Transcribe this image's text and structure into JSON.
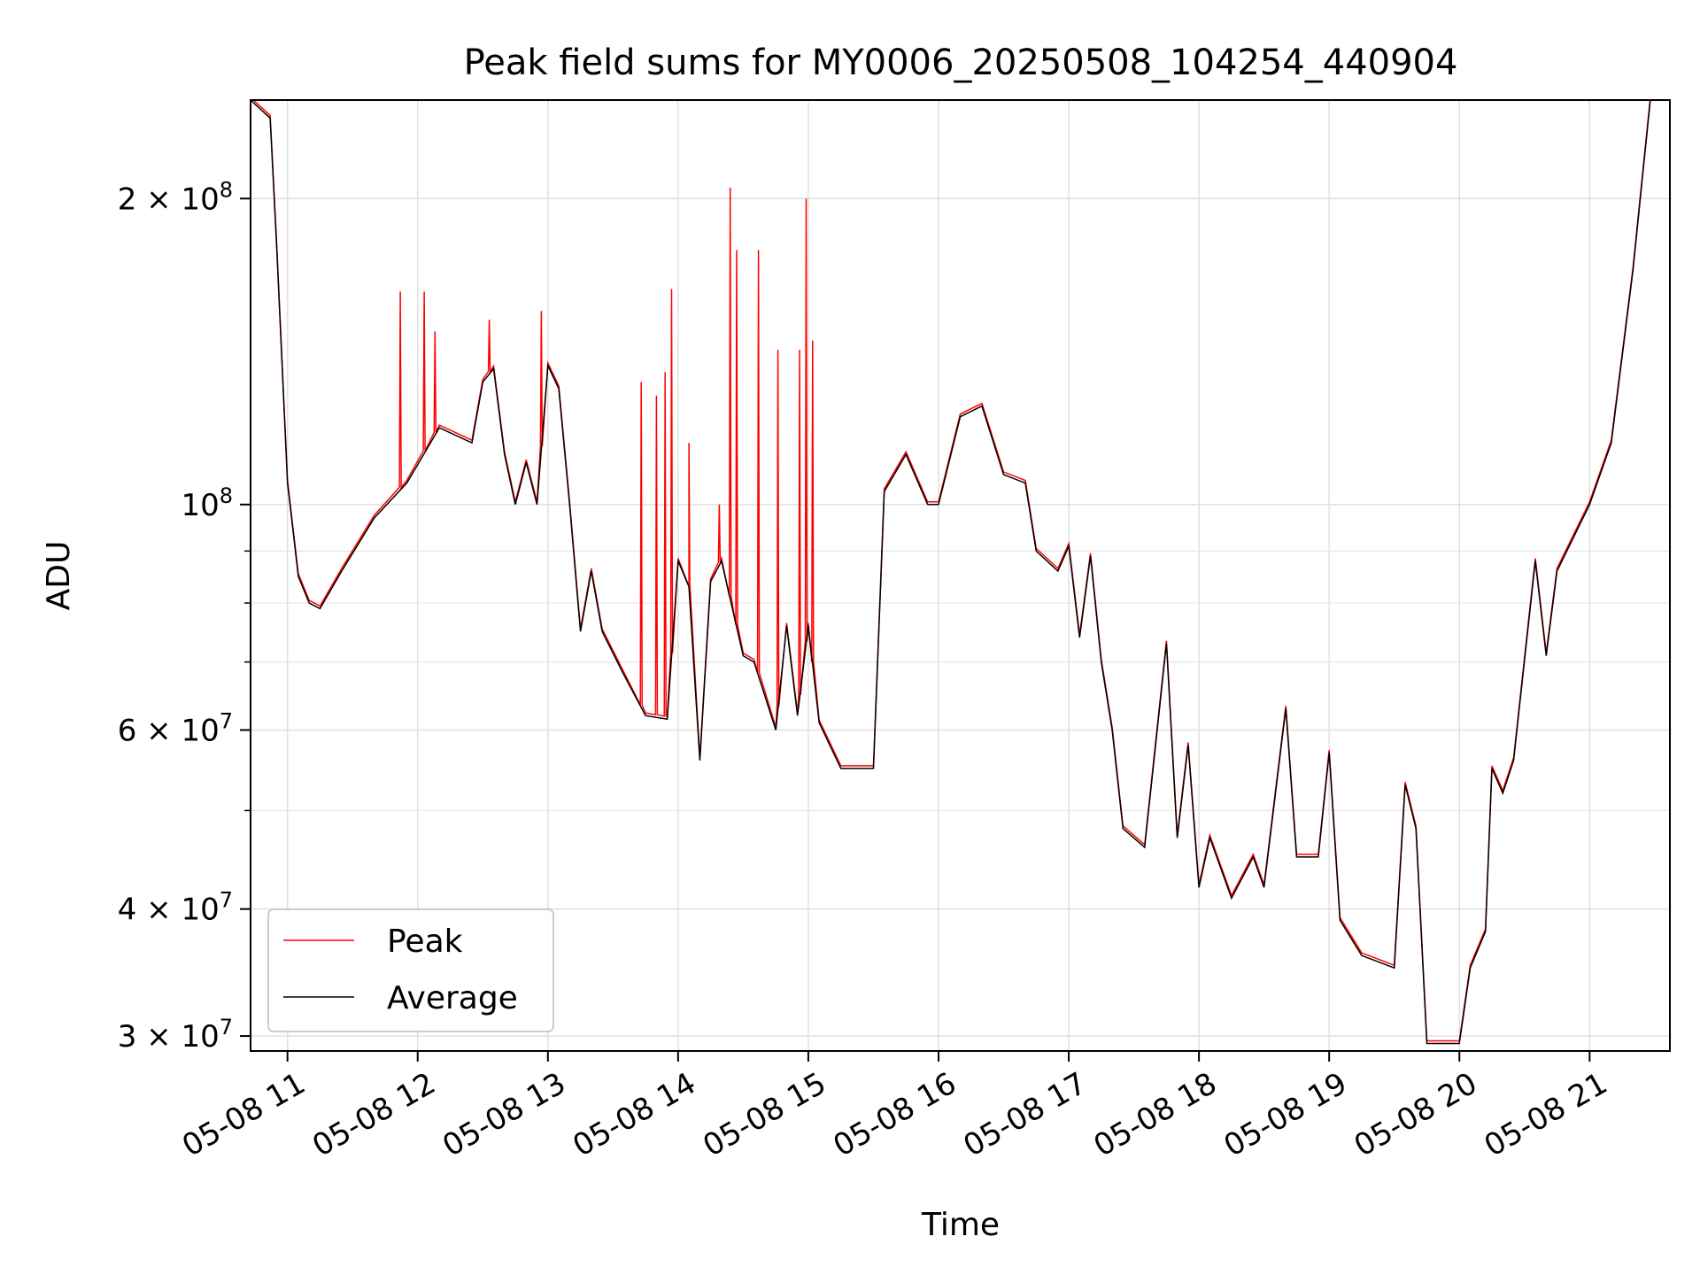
{
  "chart_data": {
    "type": "line",
    "title": "Peak field sums for MY0006_20250508_104254_440904",
    "xlabel": "Time",
    "ylabel": "ADU",
    "yscale": "log",
    "ylim": [
      29000000,
      250000000
    ],
    "xlim": [
      "2025-05-08 10:43",
      "2025-05-08 21:37"
    ],
    "grid": true,
    "legend_position": "lower-left",
    "x_ticks": [
      {
        "t": "2025-05-08 11:00",
        "label": "05-08 11"
      },
      {
        "t": "2025-05-08 12:00",
        "label": "05-08 12"
      },
      {
        "t": "2025-05-08 13:00",
        "label": "05-08 13"
      },
      {
        "t": "2025-05-08 14:00",
        "label": "05-08 14"
      },
      {
        "t": "2025-05-08 15:00",
        "label": "05-08 15"
      },
      {
        "t": "2025-05-08 16:00",
        "label": "05-08 16"
      },
      {
        "t": "2025-05-08 17:00",
        "label": "05-08 17"
      },
      {
        "t": "2025-05-08 18:00",
        "label": "05-08 18"
      },
      {
        "t": "2025-05-08 19:00",
        "label": "05-08 19"
      },
      {
        "t": "2025-05-08 20:00",
        "label": "05-08 20"
      },
      {
        "t": "2025-05-08 21:00",
        "label": "05-08 21"
      }
    ],
    "y_ticks": [
      {
        "v": 30000000,
        "mant": "3",
        "exp": "7"
      },
      {
        "v": 40000000,
        "mant": "4",
        "exp": "7"
      },
      {
        "v": 60000000,
        "mant": "6",
        "exp": "7"
      },
      {
        "v": 100000000,
        "mant": "",
        "exp": "8"
      },
      {
        "v": 200000000,
        "mant": "2",
        "exp": "8"
      }
    ],
    "y_minor_ticks": [
      50000000,
      70000000,
      80000000,
      90000000
    ],
    "series": [
      {
        "name": "Average",
        "color": "#000000",
        "points": [
          [
            "2025-05-08 10:43",
            250000000.0
          ],
          [
            "2025-05-08 10:52",
            240000000.0
          ],
          [
            "2025-05-08 10:55",
            180000000.0
          ],
          [
            "2025-05-08 11:00",
            105000000.0
          ],
          [
            "2025-05-08 11:05",
            85000000.0
          ],
          [
            "2025-05-08 11:10",
            80000000.0
          ],
          [
            "2025-05-08 11:15",
            79000000.0
          ],
          [
            "2025-05-08 11:25",
            86000000.0
          ],
          [
            "2025-05-08 11:40",
            97000000.0
          ],
          [
            "2025-05-08 11:55",
            105000000.0
          ],
          [
            "2025-05-08 12:10",
            119000000.0
          ],
          [
            "2025-05-08 12:25",
            115000000.0
          ],
          [
            "2025-05-08 12:30",
            132000000.0
          ],
          [
            "2025-05-08 12:35",
            136000000.0
          ],
          [
            "2025-05-08 12:40",
            112000000.0
          ],
          [
            "2025-05-08 12:45",
            100000000.0
          ],
          [
            "2025-05-08 12:50",
            110000000.0
          ],
          [
            "2025-05-08 12:55",
            100000000.0
          ],
          [
            "2025-05-08 13:00",
            137000000.0
          ],
          [
            "2025-05-08 13:05",
            130000000.0
          ],
          [
            "2025-05-08 13:10",
            100000000.0
          ],
          [
            "2025-05-08 13:15",
            75000000.0
          ],
          [
            "2025-05-08 13:20",
            86000000.0
          ],
          [
            "2025-05-08 13:25",
            75000000.0
          ],
          [
            "2025-05-08 13:35",
            68000000.0
          ],
          [
            "2025-05-08 13:45",
            62000000.0
          ],
          [
            "2025-05-08 13:55",
            61500000.0
          ],
          [
            "2025-05-08 14:00",
            88000000.0
          ],
          [
            "2025-05-08 14:05",
            83000000.0
          ],
          [
            "2025-05-08 14:10",
            56000000.0
          ],
          [
            "2025-05-08 14:15",
            84000000.0
          ],
          [
            "2025-05-08 14:20",
            88000000.0
          ],
          [
            "2025-05-08 14:30",
            71000000.0
          ],
          [
            "2025-05-08 14:35",
            70000000.0
          ],
          [
            "2025-05-08 14:45",
            60000000.0
          ],
          [
            "2025-05-08 14:50",
            76000000.0
          ],
          [
            "2025-05-08 14:55",
            62000000.0
          ],
          [
            "2025-05-08 15:00",
            76000000.0
          ],
          [
            "2025-05-08 15:05",
            61000000.0
          ],
          [
            "2025-05-08 15:15",
            55000000.0
          ],
          [
            "2025-05-08 15:30",
            55000000.0
          ],
          [
            "2025-05-08 15:35",
            103000000.0
          ],
          [
            "2025-05-08 15:45",
            112000000.0
          ],
          [
            "2025-05-08 15:55",
            100000000.0
          ],
          [
            "2025-05-08 16:00",
            100000000.0
          ],
          [
            "2025-05-08 16:10",
            122000000.0
          ],
          [
            "2025-05-08 16:20",
            125000000.0
          ],
          [
            "2025-05-08 16:30",
            107000000.0
          ],
          [
            "2025-05-08 16:40",
            105000000.0
          ],
          [
            "2025-05-08 16:45",
            90000000.0
          ],
          [
            "2025-05-08 16:55",
            86000000.0
          ],
          [
            "2025-05-08 17:00",
            91000000.0
          ],
          [
            "2025-05-08 17:05",
            74000000.0
          ],
          [
            "2025-05-08 17:10",
            89000000.0
          ],
          [
            "2025-05-08 17:15",
            70000000.0
          ],
          [
            "2025-05-08 17:20",
            60000000.0
          ],
          [
            "2025-05-08 17:25",
            48000000.0
          ],
          [
            "2025-05-08 17:35",
            46000000.0
          ],
          [
            "2025-05-08 17:45",
            73000000.0
          ],
          [
            "2025-05-08 17:50",
            47000000.0
          ],
          [
            "2025-05-08 17:55",
            58000000.0
          ],
          [
            "2025-05-08 18:00",
            42000000.0
          ],
          [
            "2025-05-08 18:05",
            47000000.0
          ],
          [
            "2025-05-08 18:15",
            41000000.0
          ],
          [
            "2025-05-08 18:25",
            45000000.0
          ],
          [
            "2025-05-08 18:30",
            42000000.0
          ],
          [
            "2025-05-08 18:40",
            63000000.0
          ],
          [
            "2025-05-08 18:45",
            45000000.0
          ],
          [
            "2025-05-08 18:55",
            45000000.0
          ],
          [
            "2025-05-08 19:00",
            57000000.0
          ],
          [
            "2025-05-08 19:05",
            39000000.0
          ],
          [
            "2025-05-08 19:15",
            36000000.0
          ],
          [
            "2025-05-08 19:30",
            35000000.0
          ],
          [
            "2025-05-08 19:35",
            53000000.0
          ],
          [
            "2025-05-08 19:40",
            48000000.0
          ],
          [
            "2025-05-08 19:45",
            29500000.0
          ],
          [
            "2025-05-08 20:00",
            29500000.0
          ],
          [
            "2025-05-08 20:05",
            35000000.0
          ],
          [
            "2025-05-08 20:12",
            38000000.0
          ],
          [
            "2025-05-08 20:15",
            55000000.0
          ],
          [
            "2025-05-08 20:20",
            52000000.0
          ],
          [
            "2025-05-08 20:25",
            56000000.0
          ],
          [
            "2025-05-08 20:35",
            88000000.0
          ],
          [
            "2025-05-08 20:40",
            71000000.0
          ],
          [
            "2025-05-08 20:45",
            86000000.0
          ],
          [
            "2025-05-08 21:00",
            100000000.0
          ],
          [
            "2025-05-08 21:10",
            115000000.0
          ],
          [
            "2025-05-08 21:20",
            170000000.0
          ],
          [
            "2025-05-08 21:28",
            250000000.0
          ],
          [
            "2025-05-08 21:37",
            250000000.0
          ]
        ]
      },
      {
        "name": "Peak",
        "color": "#ff0000",
        "spikes": [
          [
            "2025-05-08 11:52",
            162000000.0
          ],
          [
            "2025-05-08 12:03",
            162000000.0
          ],
          [
            "2025-05-08 12:08",
            148000000.0
          ],
          [
            "2025-05-08 12:33",
            152000000.0
          ],
          [
            "2025-05-08 12:57",
            155000000.0
          ],
          [
            "2025-05-08 13:43",
            132000000.0
          ],
          [
            "2025-05-08 13:50",
            128000000.0
          ],
          [
            "2025-05-08 13:54",
            135000000.0
          ],
          [
            "2025-05-08 13:57",
            163000000.0
          ],
          [
            "2025-05-08 14:05",
            115000000.0
          ],
          [
            "2025-05-08 14:19",
            100000000.0
          ],
          [
            "2025-05-08 14:24",
            205000000.0
          ],
          [
            "2025-05-08 14:27",
            178000000.0
          ],
          [
            "2025-05-08 14:37",
            178000000.0
          ],
          [
            "2025-05-08 14:46",
            142000000.0
          ],
          [
            "2025-05-08 14:56",
            142000000.0
          ],
          [
            "2025-05-08 14:59",
            200000000.0
          ],
          [
            "2025-05-08 15:02",
            145000000.0
          ]
        ]
      }
    ]
  }
}
